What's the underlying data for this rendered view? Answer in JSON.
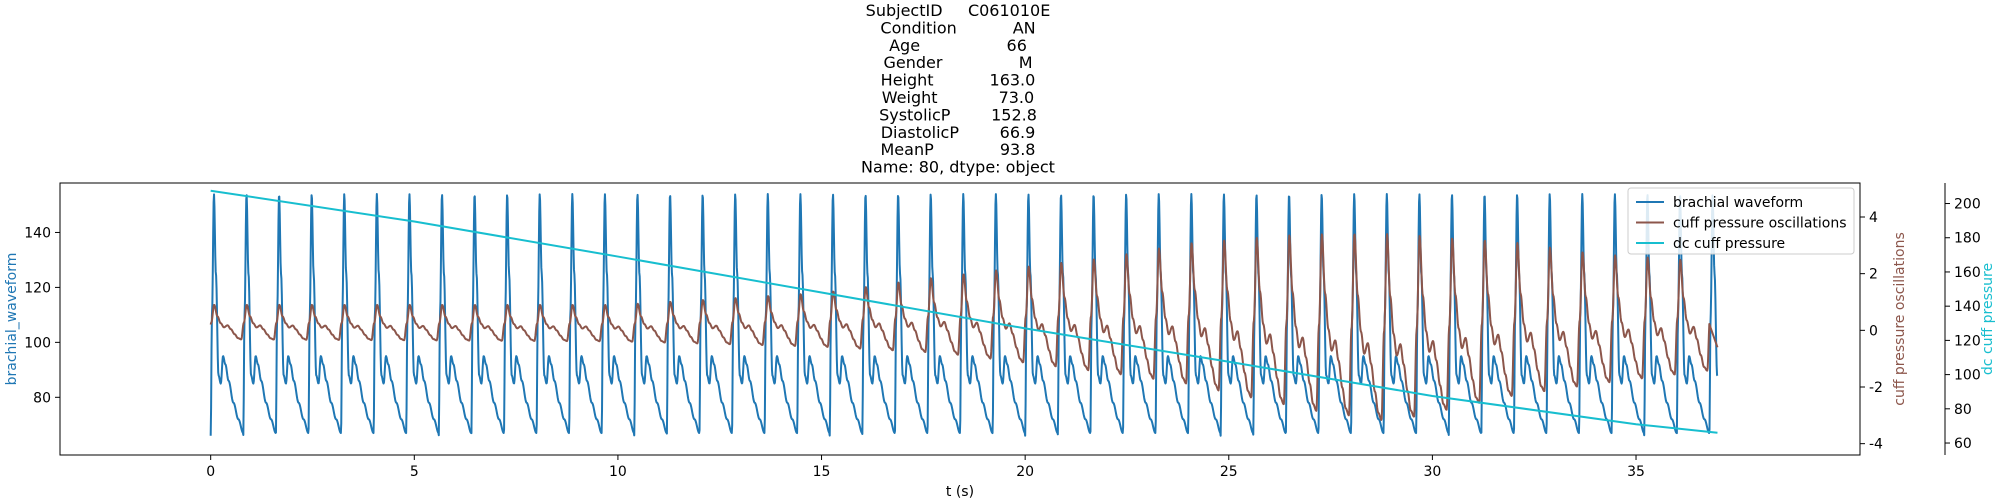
{
  "chart_data": {
    "type": "line",
    "title_lines": [
      "SubjectID     C061010E",
      "Condition           AN",
      "Age                 66",
      "Gender               M",
      "Height           163.0",
      "Weight            73.0",
      "SystolicP        152.8",
      "DiastolicP        66.9",
      "MeanP             93.8",
      "Name: 80, dtype: object"
    ],
    "xlabel": "t (s)",
    "xlim": [
      -3.7,
      40.5
    ],
    "xticks": [
      0,
      5,
      10,
      15,
      20,
      25,
      30,
      35
    ],
    "axes": {
      "left": {
        "label": "brachial_waveform",
        "color": "#1f77b4",
        "ylim": [
          59,
          158
        ],
        "ticks": [
          80,
          100,
          120,
          140
        ]
      },
      "right": {
        "label": "cuff pressure oscillations",
        "color": "#8c564b",
        "ylim": [
          -4.4,
          5.2
        ],
        "ticks": [
          -4,
          -2,
          0,
          2,
          4
        ]
      },
      "right2": {
        "label": "dc cuff pressure",
        "color": "#17becf",
        "ylim": [
          53,
          212
        ],
        "ticks": [
          60,
          80,
          100,
          120,
          140,
          160,
          180,
          200
        ]
      }
    },
    "legend": {
      "placement": "top-right",
      "entries": [
        "brachial waveform",
        "cuff pressure oscillations",
        "dc cuff pressure"
      ]
    },
    "series": [
      {
        "name": "brachial waveform",
        "axis": "left",
        "color": "#1f77b4",
        "pattern": {
          "t_start": 0,
          "t_end": 37,
          "beat_period_s": 0.8,
          "systolic": 152.8,
          "diastolic": 66.9,
          "dicrotic_peak": 95,
          "beat_shape": [
            [
              0,
              66
            ],
            [
              0.04,
              110
            ],
            [
              0.1,
              154
            ],
            [
              0.16,
              125
            ],
            [
              0.24,
              88
            ],
            [
              0.31,
              85
            ],
            [
              0.38,
              95
            ],
            [
              0.45,
              92
            ],
            [
              0.55,
              86
            ],
            [
              0.7,
              78
            ],
            [
              0.85,
              72
            ],
            [
              1,
              67
            ]
          ]
        }
      },
      {
        "name": "cuff pressure oscillations",
        "axis": "right",
        "color": "#8c564b",
        "pattern": {
          "t_start": 0,
          "t_end": 37,
          "beat_period_s": 0.8,
          "envelope": [
            [
              0,
              0.9
            ],
            [
              10,
              0.95
            ],
            [
              15,
              1.4
            ],
            [
              18,
              2.0
            ],
            [
              22,
              3.0
            ],
            [
              25,
              4.0
            ],
            [
              27,
              4.6
            ],
            [
              29,
              4.9
            ],
            [
              31,
              4.3
            ],
            [
              34,
              3.4
            ],
            [
              37,
              2.8
            ]
          ],
          "baseline": [
            [
              0,
              0
            ],
            [
              18,
              -0.1
            ],
            [
              24,
              -0.6
            ],
            [
              27,
              -1.2
            ],
            [
              29,
              -1.5
            ],
            [
              32,
              -0.9
            ],
            [
              37,
              -0.4
            ]
          ],
          "beat_shape": [
            [
              0,
              -0.35
            ],
            [
              0.08,
              0.3
            ],
            [
              0.17,
              1.0
            ],
            [
              0.27,
              0.55
            ],
            [
              0.37,
              0.28
            ],
            [
              0.47,
              0.12
            ],
            [
              0.58,
              0.2
            ],
            [
              0.68,
              0.05
            ],
            [
              0.8,
              -0.15
            ],
            [
              0.9,
              -0.3
            ],
            [
              1,
              -0.35
            ]
          ],
          "end_value": -0.6
        }
      },
      {
        "name": "dc cuff pressure",
        "axis": "right2",
        "color": "#17becf",
        "points": [
          [
            0,
            207.5
          ],
          [
            5,
            189.5
          ],
          [
            10,
            169
          ],
          [
            15,
            148
          ],
          [
            20,
            127
          ],
          [
            25,
            107.5
          ],
          [
            30,
            87.5
          ],
          [
            35,
            71
          ],
          [
            37,
            66
          ]
        ]
      }
    ]
  }
}
